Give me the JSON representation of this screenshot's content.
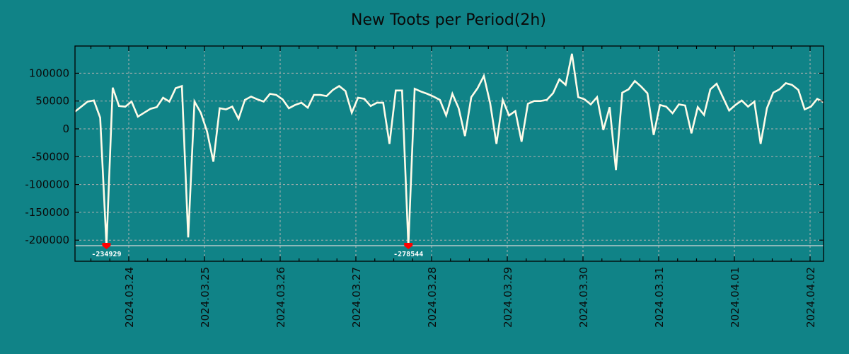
{
  "title": "New Toots per Period(2h)",
  "colors": {
    "background": "#108387",
    "line": "#fffbe8",
    "grid": "#b0b0b0",
    "axis": "#000000",
    "min_marker": "#ff0000",
    "min_line": "#d8d8d8"
  },
  "chart_data": {
    "type": "line",
    "title": "New Toots per Period(2h)",
    "xlabel": "",
    "ylabel": "",
    "grid": true,
    "legend": null,
    "ylim": [
      -240000,
      148000
    ],
    "yticks": [
      100000,
      50000,
      0,
      -50000,
      -100000,
      -150000,
      -200000
    ],
    "ytick_labels": [
      "100000",
      "50000",
      "0",
      "-50000",
      "-100000",
      "-150000",
      "-200000"
    ],
    "xtick_labels": [
      "2024.03.24",
      "2024.03.25",
      "2024.03.26",
      "2024.03.27",
      "2024.03.28",
      "2024.03.29",
      "2024.03.30",
      "2024.03.31",
      "2024.04.01",
      "2024.04.02"
    ],
    "interval": "2h",
    "series": [
      {
        "name": "New Toots",
        "values": [
          31000,
          40000,
          49000,
          51000,
          20000,
          -234929,
          74000,
          41000,
          40000,
          49000,
          22000,
          29000,
          36000,
          39000,
          56000,
          49000,
          73000,
          77000,
          -195000,
          49000,
          29000,
          -5000,
          -59000,
          37000,
          35000,
          40000,
          18000,
          52000,
          58000,
          53000,
          49000,
          63000,
          61000,
          53000,
          37000,
          43000,
          47000,
          38000,
          61000,
          61000,
          59000,
          70000,
          77000,
          68000,
          29000,
          56000,
          54000,
          41000,
          47000,
          47000,
          -27000,
          69000,
          69000,
          -278544,
          72000,
          67000,
          63000,
          58000,
          52000,
          24000,
          63000,
          37000,
          -13000,
          57000,
          73000,
          95000,
          46000,
          -27000,
          52000,
          24000,
          32000,
          -23000,
          45000,
          50000,
          50000,
          52000,
          64000,
          89000,
          79000,
          135000,
          57000,
          53000,
          44000,
          57000,
          -2000,
          39000,
          -74000,
          65000,
          71000,
          86000,
          76000,
          64000,
          -11000,
          43000,
          40000,
          28000,
          44000,
          42000,
          -8000,
          39000,
          25000,
          71000,
          81000,
          57000,
          33000,
          43000,
          51000,
          40000,
          49000,
          -27000,
          37000,
          65000,
          71000,
          82000,
          79000,
          70000,
          35000,
          40000,
          54000,
          48000
        ]
      }
    ],
    "annotations": [
      {
        "type": "min_marker",
        "label": "-234929",
        "value": -234929,
        "near": "2024.03.24 (before)"
      },
      {
        "type": "min_marker",
        "label": "-278544",
        "value": -278544,
        "near": "2024.03.28 (before)"
      }
    ],
    "clipped_floor": -210000
  }
}
